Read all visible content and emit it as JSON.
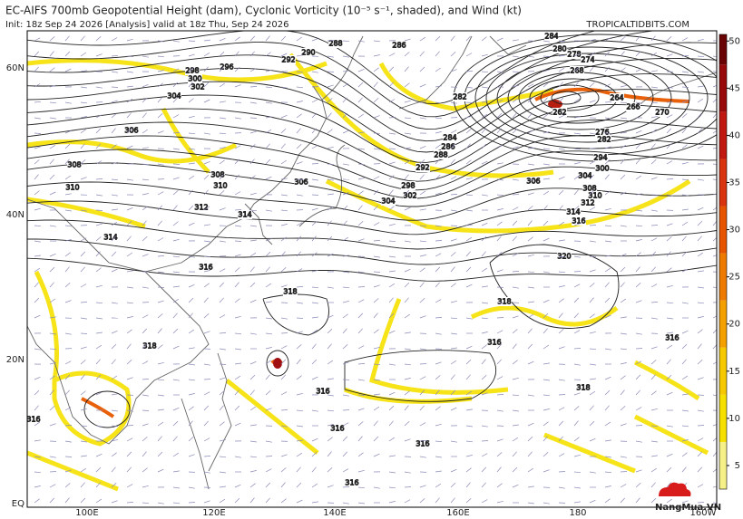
{
  "header": {
    "title": "EC-AIFS 700mb Geopotential Height (dam), Cyclonic Vorticity (10⁻⁵ s⁻¹, shaded), and Wind (kt)",
    "init": "Init: 18z Sep 24 2026   [Analysis]   valid at 18z Thu, Sep 24 2026",
    "source": "TROPICALTIDBITS.COM"
  },
  "map": {
    "lat_labels": [
      "60N",
      "40N",
      "20N",
      "EQ"
    ],
    "lon_labels": [
      "100E",
      "120E",
      "140E",
      "160E",
      "180",
      "160W"
    ],
    "contour_labels": [
      288,
      286,
      290,
      292,
      296,
      298,
      300,
      302,
      304,
      306,
      308,
      310,
      308,
      310,
      312,
      314,
      314,
      316,
      318,
      318,
      306,
      304,
      302,
      298,
      292,
      288,
      286,
      284,
      282,
      284,
      280,
      278,
      274,
      268,
      262,
      264,
      266,
      270,
      276,
      282,
      294,
      300,
      304,
      306,
      308,
      310,
      312,
      314,
      316,
      320,
      318,
      316,
      318,
      316,
      316,
      316,
      316,
      316,
      316
    ]
  },
  "colorbar": {
    "lim": [
      2.5,
      50.7
    ],
    "ticks": [
      5,
      10,
      15,
      20,
      25,
      30,
      35,
      40,
      45,
      50
    ]
  },
  "watermark": "NangMua.VN"
}
